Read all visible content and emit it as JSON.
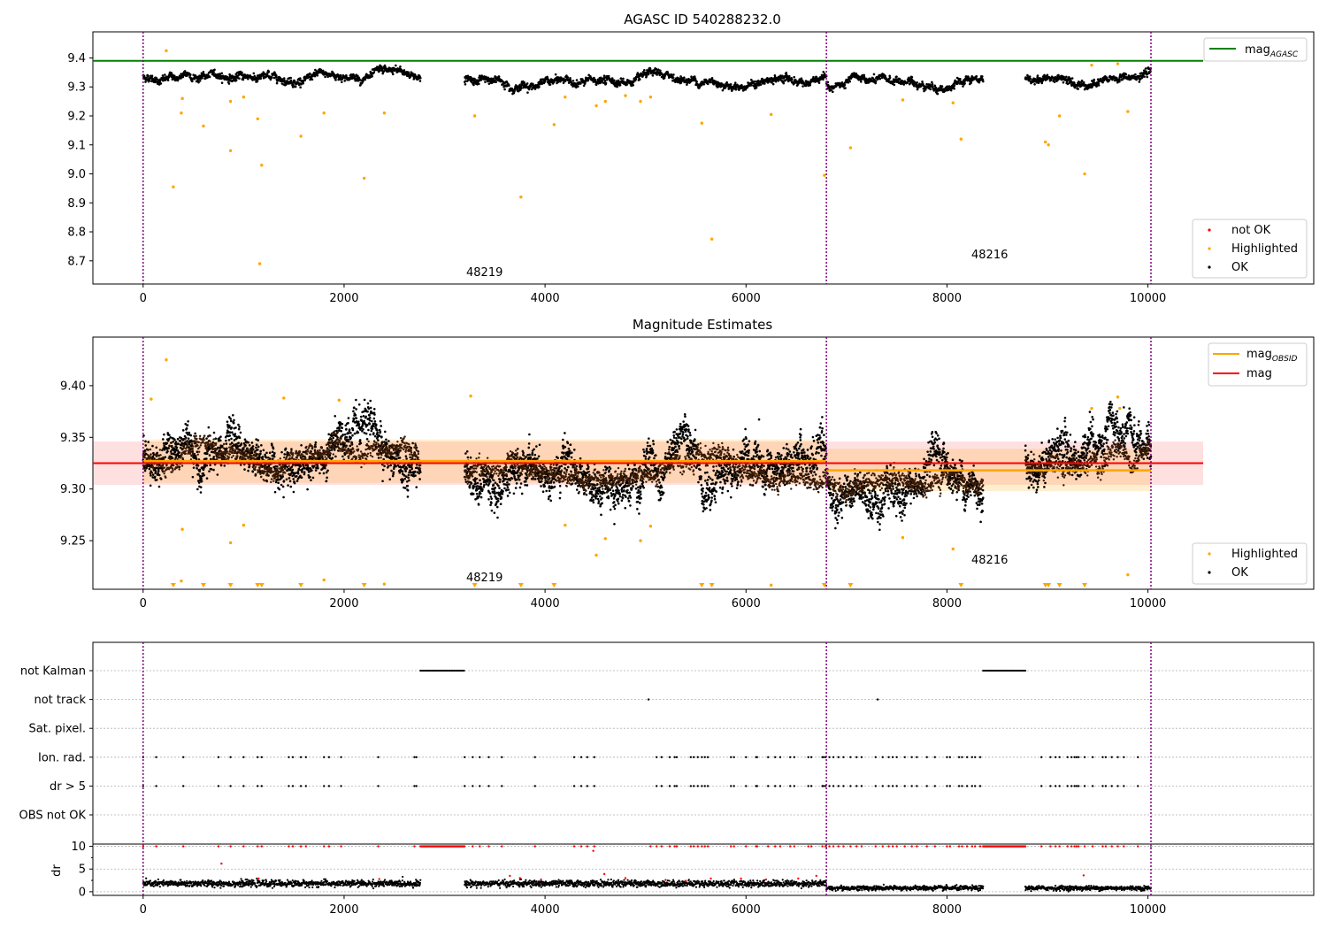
{
  "figure_title": "AGASC ID 540288232.0",
  "colors": {
    "ok": "#000000",
    "highlighted": "#ffa500",
    "not_ok": "#ff0000",
    "mag_agasc_line": "#008000",
    "mag_obsid_line": "#ffa500",
    "mag_line": "#ff0000",
    "obsid_separator": "#800080",
    "grid": "#b0b0b0"
  },
  "chart_data": [
    {
      "type": "scatter",
      "title": "AGASC ID 540288232.0",
      "xlabel": "",
      "ylabel": "",
      "xlim": [
        -500,
        11650
      ],
      "ylim": [
        8.62,
        9.49
      ],
      "xticks": [
        0,
        2000,
        4000,
        6000,
        8000,
        10000
      ],
      "yticks": [
        8.7,
        8.8,
        8.9,
        9.0,
        9.1,
        9.2,
        9.3,
        9.4
      ],
      "grid": false,
      "obsid_separators": [
        0,
        6800,
        10030
      ],
      "obsid_labels": [
        {
          "text": "48219",
          "x": 3400,
          "y": 8.66
        },
        {
          "text": "48216",
          "x": 8400,
          "y": 8.71
        }
      ],
      "reference_lines": [
        {
          "name": "mag_AGASC",
          "y": 9.39,
          "x_range": [
            -500,
            10550
          ]
        }
      ],
      "series_segments": [
        {
          "x_range": [
            0,
            2760
          ],
          "center": 9.335,
          "noise": 0.012
        },
        {
          "x_range": [
            3200,
            6800
          ],
          "center": 9.318,
          "noise": 0.012
        },
        {
          "x_range": [
            6800,
            8360
          ],
          "center": 9.308,
          "noise": 0.012
        },
        {
          "x_range": [
            8780,
            10030
          ],
          "center": 9.332,
          "noise": 0.012
        }
      ],
      "highlighted_points": [
        [
          230,
          9.425
        ],
        [
          300,
          8.955
        ],
        [
          390,
          9.26
        ],
        [
          380,
          9.21
        ],
        [
          600,
          9.165
        ],
        [
          870,
          9.25
        ],
        [
          870,
          9.08
        ],
        [
          1000,
          9.265
        ],
        [
          1140,
          9.19
        ],
        [
          1160,
          8.69
        ],
        [
          1180,
          9.03
        ],
        [
          1570,
          9.13
        ],
        [
          1800,
          9.21
        ],
        [
          2200,
          8.985
        ],
        [
          2400,
          9.21
        ],
        [
          3300,
          9.2
        ],
        [
          3760,
          8.92
        ],
        [
          4090,
          9.17
        ],
        [
          4200,
          9.265
        ],
        [
          4510,
          9.235
        ],
        [
          4600,
          9.25
        ],
        [
          4800,
          9.27
        ],
        [
          4950,
          9.25
        ],
        [
          5050,
          9.265
        ],
        [
          5560,
          9.175
        ],
        [
          5660,
          8.775
        ],
        [
          6250,
          9.205
        ],
        [
          6780,
          8.995
        ],
        [
          7040,
          9.09
        ],
        [
          7560,
          9.255
        ],
        [
          8060,
          9.245
        ],
        [
          8140,
          9.12
        ],
        [
          8980,
          9.11
        ],
        [
          9010,
          9.1
        ],
        [
          9120,
          9.2
        ],
        [
          9370,
          9.0
        ],
        [
          9440,
          9.375
        ],
        [
          9700,
          9.38
        ],
        [
          9800,
          9.215
        ]
      ],
      "legend": [
        {
          "label": "mag",
          "subscript": "AGASC",
          "kind": "line",
          "color": "#008000"
        },
        {
          "label": "not OK",
          "kind": "marker",
          "color": "#ff0000"
        },
        {
          "label": "Highlighted",
          "kind": "marker",
          "color": "#ffa500"
        },
        {
          "label": "OK",
          "kind": "marker",
          "color": "#000000"
        }
      ],
      "legend_placement": [
        "top-right",
        "bottom-right"
      ]
    },
    {
      "type": "scatter",
      "title": "Magnitude Estimates",
      "xlabel": "",
      "ylabel": "",
      "xlim": [
        -500,
        11650
      ],
      "ylim": [
        9.203,
        9.447
      ],
      "xticks": [
        0,
        2000,
        4000,
        6000,
        8000,
        10000
      ],
      "yticks": [
        9.25,
        9.3,
        9.35,
        9.4
      ],
      "grid": false,
      "obsid_separators": [
        0,
        6800,
        10030
      ],
      "obsid_labels": [
        {
          "text": "48219",
          "x": 3400,
          "y": 9.212
        },
        {
          "text": "48216",
          "x": 8400,
          "y": 9.232
        }
      ],
      "mag": {
        "value": 9.325,
        "band": [
          9.304,
          9.346
        ],
        "x_range": [
          -500,
          10550
        ]
      },
      "mag_obsid": [
        {
          "value": 9.327,
          "band": [
            9.306,
            9.348
          ],
          "x_range": [
            0,
            6800
          ]
        },
        {
          "value": 9.318,
          "band": [
            9.298,
            9.339
          ],
          "x_range": [
            6800,
            10030
          ]
        }
      ],
      "series_segments": [
        {
          "x_range": [
            0,
            2760
          ],
          "center": 9.333,
          "noise": 0.014
        },
        {
          "x_range": [
            3200,
            6800
          ],
          "center": 9.316,
          "noise": 0.014
        },
        {
          "x_range": [
            6800,
            8360
          ],
          "center": 9.306,
          "noise": 0.014
        },
        {
          "x_range": [
            8780,
            10030
          ],
          "center": 9.33,
          "noise": 0.014
        }
      ],
      "highlighted_points": [
        [
          230,
          9.425
        ],
        [
          80,
          9.387
        ],
        [
          390,
          9.261
        ],
        [
          380,
          9.211
        ],
        [
          870,
          9.248
        ],
        [
          1000,
          9.265
        ],
        [
          1400,
          9.388
        ],
        [
          1800,
          9.212
        ],
        [
          1950,
          9.386
        ],
        [
          2400,
          9.208
        ],
        [
          3260,
          9.39
        ],
        [
          4200,
          9.265
        ],
        [
          4510,
          9.236
        ],
        [
          4600,
          9.252
        ],
        [
          4950,
          9.25
        ],
        [
          5050,
          9.264
        ],
        [
          6250,
          9.207
        ],
        [
          7560,
          9.253
        ],
        [
          8060,
          9.242
        ],
        [
          9440,
          9.378
        ],
        [
          9700,
          9.389
        ],
        [
          9720,
          9.378
        ],
        [
          9800,
          9.217
        ]
      ],
      "offscale_markers_x": [
        300,
        600,
        870,
        1140,
        1180,
        1570,
        2200,
        3300,
        3760,
        4090,
        5560,
        5660,
        6780,
        7040,
        8140,
        8980,
        9010,
        9120,
        9370
      ],
      "legend": [
        {
          "label": "mag",
          "subscript": "OBSID",
          "kind": "line",
          "color": "#ffa500"
        },
        {
          "label": "mag",
          "kind": "line",
          "color": "#ff0000"
        },
        {
          "label": "Highlighted",
          "kind": "marker",
          "color": "#ffa500"
        },
        {
          "label": "OK",
          "kind": "marker",
          "color": "#000000"
        }
      ],
      "legend_placement": [
        "top-right",
        "bottom-right"
      ]
    },
    {
      "type": "scatter",
      "title": "",
      "xlabel": "",
      "ylabel": "",
      "xlim": [
        -500,
        11650
      ],
      "categories": [
        "not Kalman",
        "not track",
        "Sat. pixel.",
        "Ion. rad.",
        "dr > 5",
        "OBS not OK"
      ],
      "grid": true,
      "obsid_separators": [
        0,
        6800,
        10030
      ],
      "flag_ranges": [
        {
          "flag": "not Kalman",
          "x_ranges": [
            [
              2760,
              3200
            ],
            [
              8360,
              8780
            ]
          ]
        },
        {
          "flag": "not track",
          "x_points": [
            5030,
            7310
          ]
        },
        {
          "flag": "Ion. rad.",
          "x_points": [
            0,
            130,
            400,
            750,
            870,
            1000,
            1140,
            1180,
            1450,
            1490,
            1570,
            1620,
            1800,
            1850,
            1970,
            2340,
            2700,
            2720,
            3200,
            3280,
            3350,
            3440,
            3570,
            3900,
            4290,
            4360,
            4420,
            4490,
            5110,
            5160,
            5240,
            5290,
            5310,
            5450,
            5480,
            5520,
            5560,
            5590,
            5620,
            5850,
            5880,
            6000,
            6100,
            6110,
            6220,
            6290,
            6340,
            6440,
            6480,
            6620,
            6650,
            6760,
            6770,
            6790,
            6830,
            6870,
            6920,
            6970,
            7040,
            7100,
            7150,
            7290,
            7360,
            7420,
            7460,
            7500,
            7580,
            7650,
            7700,
            7800,
            7880,
            8000,
            8030,
            8120,
            8150,
            8200,
            8250,
            8280,
            8330,
            8940,
            9030,
            9080,
            9120,
            9200,
            9240,
            9270,
            9290,
            9310,
            9370,
            9450,
            9550,
            9580,
            9640,
            9700,
            9760,
            9900
          ]
        },
        {
          "flag": "dr > 5",
          "x_points": [
            0,
            130,
            400,
            750,
            870,
            1000,
            1140,
            1180,
            1450,
            1490,
            1570,
            1620,
            1800,
            1850,
            1970,
            2340,
            2700,
            2720,
            3200,
            3280,
            3350,
            3440,
            3570,
            3900,
            4290,
            4360,
            4420,
            4490,
            5110,
            5160,
            5240,
            5290,
            5310,
            5450,
            5480,
            5520,
            5560,
            5590,
            5620,
            5850,
            5880,
            6000,
            6100,
            6110,
            6220,
            6290,
            6340,
            6440,
            6480,
            6620,
            6650,
            6760,
            6770,
            6790,
            6830,
            6870,
            6920,
            6970,
            7040,
            7100,
            7150,
            7290,
            7360,
            7420,
            7460,
            7500,
            7580,
            7650,
            7700,
            7800,
            7880,
            8000,
            8030,
            8120,
            8150,
            8200,
            8250,
            8280,
            8330,
            8940,
            9030,
            9080,
            9120,
            9200,
            9240,
            9270,
            9290,
            9310,
            9370,
            9450,
            9550,
            9580,
            9640,
            9700,
            9760,
            9900
          ]
        }
      ]
    },
    {
      "type": "scatter",
      "title": "",
      "xlabel": "",
      "ylabel": "dr",
      "xlim": [
        -500,
        11650
      ],
      "ylim": [
        -0.8,
        10.5
      ],
      "xticks": [
        0,
        2000,
        4000,
        6000,
        8000,
        10000
      ],
      "yticks": [
        0,
        5,
        10
      ],
      "grid": true,
      "obsid_separators": [
        0,
        6800,
        10030
      ],
      "series_segments": [
        {
          "x_range": [
            0,
            2760
          ],
          "center": 1.8,
          "noise": 0.35
        },
        {
          "x_range": [
            3200,
            6800
          ],
          "center": 1.8,
          "noise": 0.35
        },
        {
          "x_range": [
            6800,
            8360
          ],
          "center": 0.8,
          "noise": 0.25
        },
        {
          "x_range": [
            8780,
            10030
          ],
          "center": 0.8,
          "noise": 0.25
        }
      ],
      "saturated_ranges": [
        [
          2760,
          3200
        ],
        [
          8360,
          8780
        ]
      ],
      "not_ok_points_at_10": [
        0,
        130,
        400,
        750,
        870,
        1000,
        1140,
        1180,
        1450,
        1490,
        1570,
        1620,
        1800,
        1850,
        1970,
        2340,
        2700,
        3280,
        3350,
        3440,
        3570,
        3900,
        4290,
        4360,
        4420,
        4490,
        5050,
        5110,
        5160,
        5240,
        5290,
        5310,
        5450,
        5480,
        5520,
        5560,
        5590,
        5620,
        5850,
        5880,
        6000,
        6100,
        6110,
        6220,
        6290,
        6340,
        6440,
        6480,
        6620,
        6650,
        6760,
        6790,
        6830,
        6870,
        6920,
        6970,
        7040,
        7100,
        7150,
        7290,
        7360,
        7420,
        7460,
        7500,
        7580,
        7650,
        7700,
        7800,
        7880,
        8000,
        8030,
        8120,
        8150,
        8200,
        8250,
        8280,
        8330,
        8940,
        9030,
        9080,
        9120,
        9200,
        9240,
        9270,
        9290,
        9310,
        9370,
        9450,
        9550,
        9580,
        9640,
        9700,
        9760,
        9900
      ],
      "not_ok_points": [
        [
          780,
          6.2
        ],
        [
          1150,
          2.9
        ],
        [
          2350,
          2.8
        ],
        [
          3650,
          3.5
        ],
        [
          3750,
          3.0
        ],
        [
          3960,
          2.7
        ],
        [
          4480,
          9.0
        ],
        [
          4590,
          3.9
        ],
        [
          4800,
          3.0
        ],
        [
          5200,
          2.6
        ],
        [
          5400,
          2.4
        ],
        [
          5650,
          2.9
        ],
        [
          5950,
          2.9
        ],
        [
          6200,
          2.7
        ],
        [
          6520,
          2.9
        ],
        [
          6700,
          3.5
        ],
        [
          9360,
          3.6
        ]
      ]
    }
  ]
}
